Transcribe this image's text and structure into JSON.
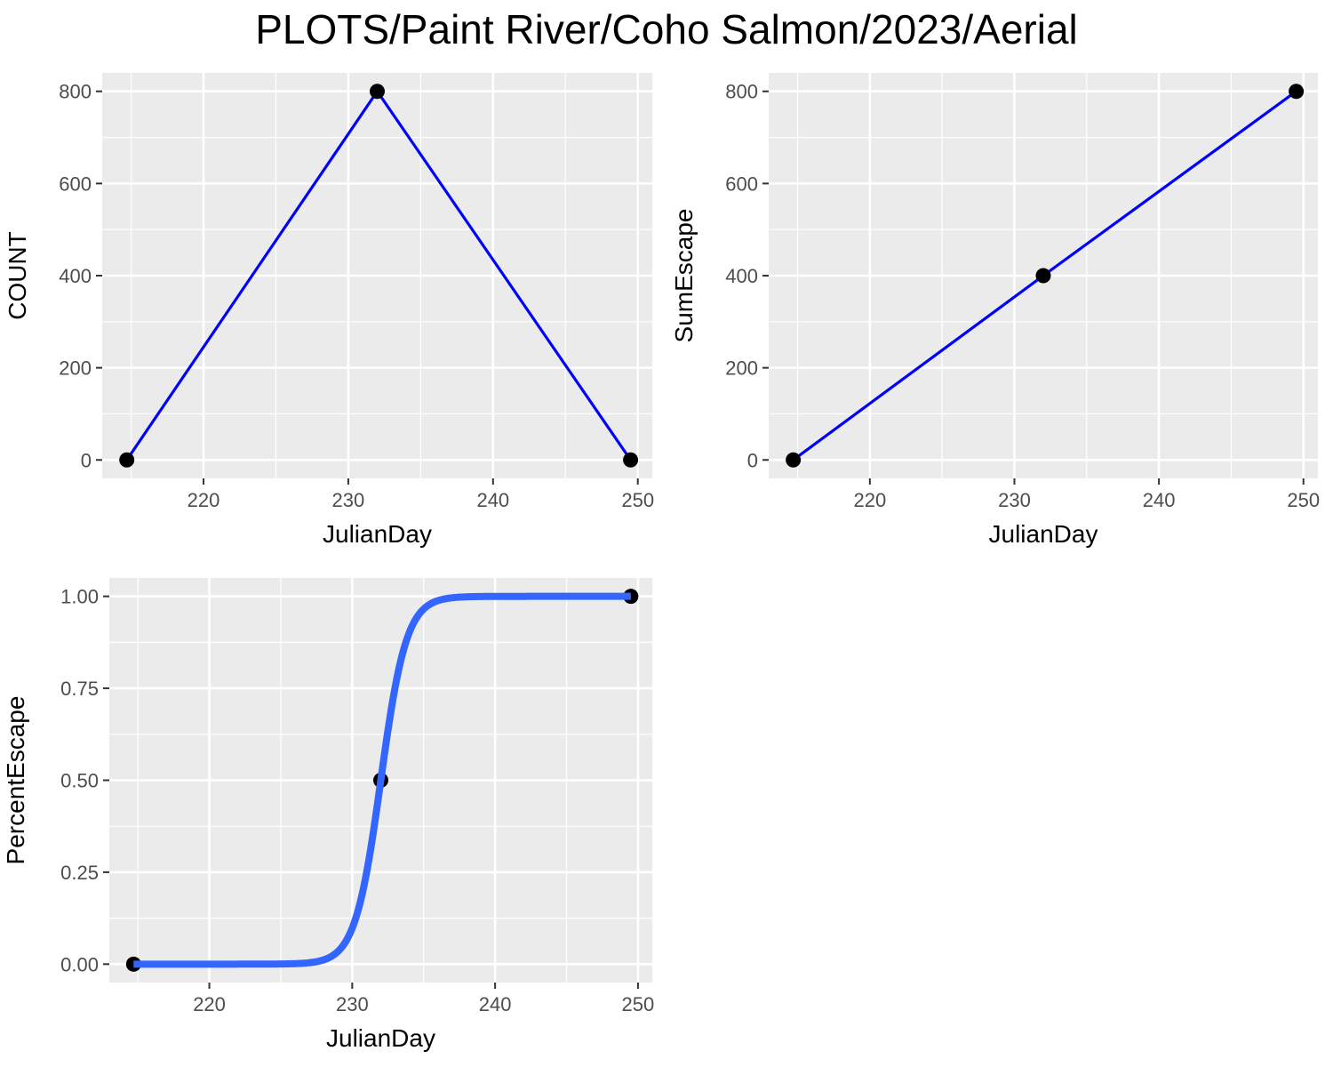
{
  "figure": {
    "title": "PLOTS/Paint River/Coho Salmon/2023/Aerial"
  },
  "colors": {
    "panel_bg": "#EBEBEB",
    "grid_major": "#FFFFFF",
    "line_blue": "#0000FF",
    "curve_blue": "#3366FF",
    "point": "#000000",
    "tick_text": "#4D4D4D"
  },
  "chart_data": [
    {
      "type": "line",
      "xlabel": "JulianDay",
      "ylabel": "COUNT",
      "xlim": [
        213,
        251
      ],
      "ylim": [
        -40,
        840
      ],
      "xticks": [
        220,
        230,
        240,
        250
      ],
      "yticks": [
        0,
        200,
        400,
        600,
        800
      ],
      "ytick_labels": [
        "0",
        "200",
        "400",
        "600",
        "800"
      ],
      "grid": true,
      "series": [
        {
          "style": "line+points",
          "color": "#0000FF",
          "x": [
            214.7,
            232,
            249.5
          ],
          "y": [
            0,
            800,
            0
          ]
        }
      ]
    },
    {
      "type": "line",
      "xlabel": "JulianDay",
      "ylabel": "SumEscape",
      "xlim": [
        213,
        251
      ],
      "ylim": [
        -40,
        840
      ],
      "xticks": [
        220,
        230,
        240,
        250
      ],
      "yticks": [
        0,
        200,
        400,
        600,
        800
      ],
      "ytick_labels": [
        "0",
        "200",
        "400",
        "600",
        "800"
      ],
      "grid": true,
      "series": [
        {
          "style": "line+points",
          "color": "#0000FF",
          "x": [
            214.7,
            232,
            249.5
          ],
          "y": [
            0,
            400,
            800
          ]
        }
      ]
    },
    {
      "type": "line",
      "xlabel": "JulianDay",
      "ylabel": "PercentEscape",
      "xlim": [
        213,
        251
      ],
      "ylim": [
        -0.05,
        1.05
      ],
      "xticks": [
        220,
        230,
        240,
        250
      ],
      "yticks": [
        0,
        0.25,
        0.5,
        0.75,
        1
      ],
      "ytick_labels": [
        "0.00",
        "0.25",
        "0.50",
        "0.75",
        "1.00"
      ],
      "grid": true,
      "series": [
        {
          "style": "points",
          "color": "#000000",
          "x": [
            214.7,
            232,
            249.5
          ],
          "y": [
            0,
            0.5,
            1
          ]
        },
        {
          "style": "logistic-fit",
          "color": "#3366FF",
          "x_range": [
            214.7,
            249.5
          ],
          "midpoint": 232,
          "scale": 0.9
        }
      ]
    }
  ]
}
